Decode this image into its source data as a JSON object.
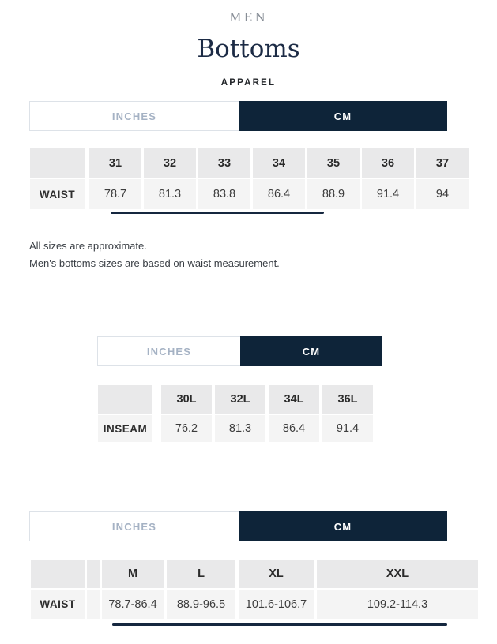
{
  "page": {
    "category": "MEN",
    "title": "Bottoms",
    "subtitle": "APPAREL"
  },
  "units": {
    "inches_label": "INCHES",
    "cm_label": "CM",
    "selected": "CM"
  },
  "colors": {
    "navy": "#0e2439",
    "inactive_tab_text": "#a5b2c4",
    "header_cell_bg": "#e9e9ea",
    "value_cell_bg": "#f4f4f4",
    "title_navy": "#1c2b45"
  },
  "notes": {
    "line1": "All sizes are approximate.",
    "line2": "Men's bottoms sizes are based on waist measurement."
  },
  "tables": [
    {
      "name": "waist-by-number",
      "row_label": "WAIST",
      "columns": [
        "31",
        "32",
        "33",
        "34",
        "35",
        "36",
        "37"
      ],
      "values": [
        "78.7",
        "81.3",
        "83.8",
        "86.4",
        "88.9",
        "91.4",
        "94"
      ],
      "clipped": true
    },
    {
      "name": "inseam-by-length",
      "row_label": "INSEAM",
      "columns": [
        "30L",
        "32L",
        "34L",
        "36L"
      ],
      "values": [
        "76.2",
        "81.3",
        "86.4",
        "91.4"
      ],
      "clipped": false
    },
    {
      "name": "waist-by-letter",
      "row_label": "WAIST",
      "columns": [
        "M",
        "L",
        "XL",
        "XXL"
      ],
      "values": [
        "78.7-86.4",
        "88.9-96.5",
        "101.6-106.7",
        "109.2-114.3"
      ],
      "clipped": true
    }
  ]
}
